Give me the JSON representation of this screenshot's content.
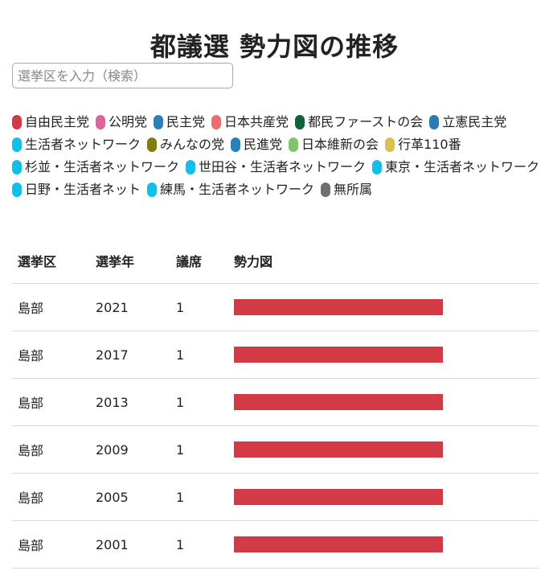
{
  "title": "都議選 勢力図の推移",
  "search": {
    "placeholder": "選挙区を入力（検索）",
    "value": ""
  },
  "legend": [
    {
      "label": "自由民主党",
      "color": "#d23a45"
    },
    {
      "label": "公明党",
      "color": "#e0649b"
    },
    {
      "label": "民主党",
      "color": "#2f7fb8"
    },
    {
      "label": "日本共産党",
      "color": "#ec6d6d"
    },
    {
      "label": "都民ファーストの会",
      "color": "#10623a"
    },
    {
      "label": "立憲民主党",
      "color": "#2b7cb4"
    },
    {
      "label": "生活者ネットワーク",
      "color": "#12bfe8"
    },
    {
      "label": "みんなの党",
      "color": "#807d0a"
    },
    {
      "label": "民進党",
      "color": "#2a7fbe"
    },
    {
      "label": "日本維新の会",
      "color": "#80c46a"
    },
    {
      "label": "行革110番",
      "color": "#d9bf52"
    },
    {
      "label": "杉並・生活者ネットワーク",
      "color": "#12bfe8"
    },
    {
      "label": "世田谷・生活者ネットワーク",
      "color": "#12bfe8"
    },
    {
      "label": "東京・生活者ネットワーク",
      "color": "#12bfe8"
    },
    {
      "label": "日野・生活者ネット",
      "color": "#12bfe8"
    },
    {
      "label": "練馬・生活者ネットワーク",
      "color": "#12bfe8"
    },
    {
      "label": "無所属",
      "color": "#6f6f6f"
    }
  ],
  "table": {
    "headers": [
      "選挙区",
      "選挙年",
      "議席",
      "勢力図"
    ],
    "rows": [
      {
        "district": "島部",
        "year": "2021",
        "seats": "1",
        "composition": [
          {
            "party": "自由民主党",
            "seats": 1,
            "color": "#d23a45"
          }
        ]
      },
      {
        "district": "島部",
        "year": "2017",
        "seats": "1",
        "composition": [
          {
            "party": "自由民主党",
            "seats": 1,
            "color": "#d23a45"
          }
        ]
      },
      {
        "district": "島部",
        "year": "2013",
        "seats": "1",
        "composition": [
          {
            "party": "自由民主党",
            "seats": 1,
            "color": "#d23a45"
          }
        ]
      },
      {
        "district": "島部",
        "year": "2009",
        "seats": "1",
        "composition": [
          {
            "party": "自由民主党",
            "seats": 1,
            "color": "#d23a45"
          }
        ]
      },
      {
        "district": "島部",
        "year": "2005",
        "seats": "1",
        "composition": [
          {
            "party": "自由民主党",
            "seats": 1,
            "color": "#d23a45"
          }
        ]
      },
      {
        "district": "島部",
        "year": "2001",
        "seats": "1",
        "composition": [
          {
            "party": "自由民主党",
            "seats": 1,
            "color": "#d23a45"
          }
        ]
      }
    ]
  }
}
